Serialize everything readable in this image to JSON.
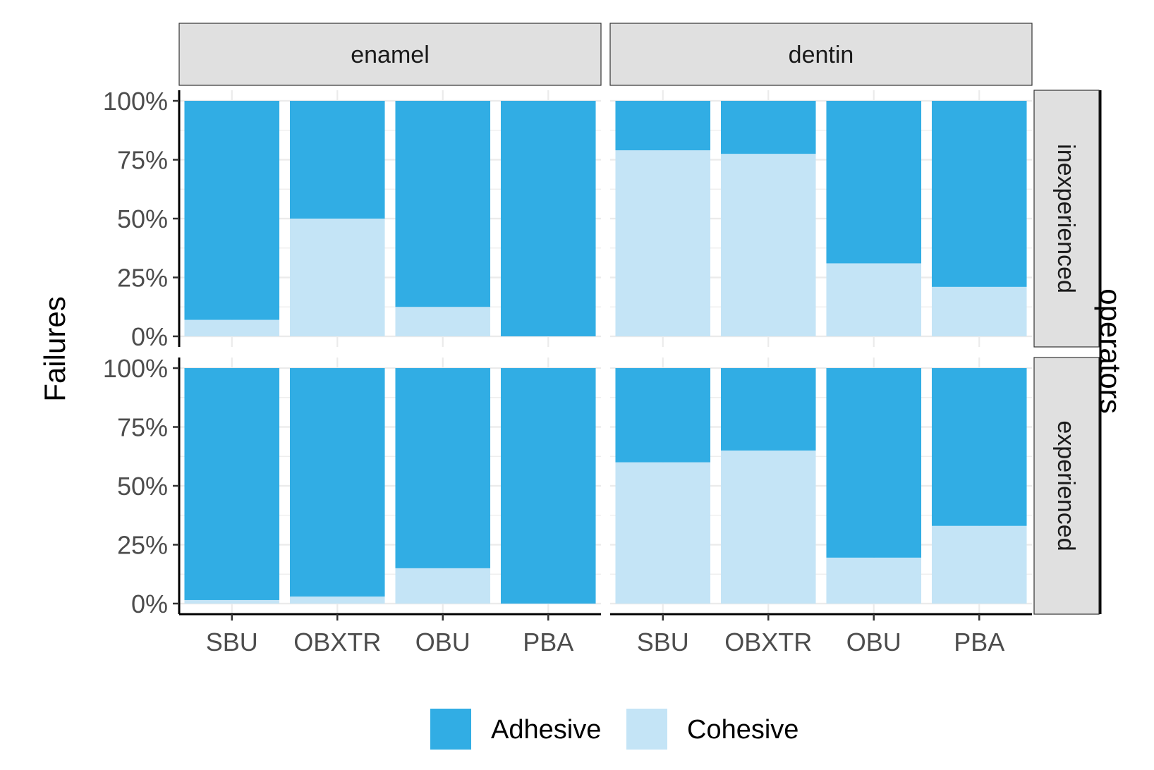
{
  "colors": {
    "adhesive": "#31ADE4",
    "cohesive": "#C4E4F6",
    "strip_fill": "#E0E0E0",
    "grid": "#EBEBEB"
  },
  "chart_data": {
    "type": "bar",
    "stacked": true,
    "percent": true,
    "ylabel": "Failures",
    "right_strip_title": "operators",
    "col_facets": [
      "enamel",
      "dentin"
    ],
    "row_facets": [
      "inexperienced",
      "experienced"
    ],
    "categories": [
      "SBU",
      "OBXTR",
      "OBU",
      "PBA"
    ],
    "y_ticks": [
      "0%",
      "25%",
      "50%",
      "75%",
      "100%"
    ],
    "ylim": [
      0,
      1
    ],
    "grid": true,
    "legend_position": "bottom",
    "legend": [
      "Adhesive",
      "Cohesive"
    ],
    "panels": [
      {
        "col": "enamel",
        "row": "inexperienced",
        "series": [
          {
            "name": "Adhesive",
            "values": [
              0.93,
              0.5,
              0.875,
              1.0
            ]
          },
          {
            "name": "Cohesive",
            "values": [
              0.07,
              0.5,
              0.125,
              0.0
            ]
          }
        ]
      },
      {
        "col": "dentin",
        "row": "inexperienced",
        "series": [
          {
            "name": "Adhesive",
            "values": [
              0.21,
              0.225,
              0.69,
              0.79
            ]
          },
          {
            "name": "Cohesive",
            "values": [
              0.79,
              0.775,
              0.31,
              0.21
            ]
          }
        ]
      },
      {
        "col": "enamel",
        "row": "experienced",
        "series": [
          {
            "name": "Adhesive",
            "values": [
              0.985,
              0.97,
              0.85,
              1.0
            ]
          },
          {
            "name": "Cohesive",
            "values": [
              0.015,
              0.03,
              0.15,
              0.0
            ]
          }
        ]
      },
      {
        "col": "dentin",
        "row": "experienced",
        "series": [
          {
            "name": "Adhesive",
            "values": [
              0.4,
              0.35,
              0.805,
              0.67
            ]
          },
          {
            "name": "Cohesive",
            "values": [
              0.6,
              0.65,
              0.195,
              0.33
            ]
          }
        ]
      }
    ]
  }
}
